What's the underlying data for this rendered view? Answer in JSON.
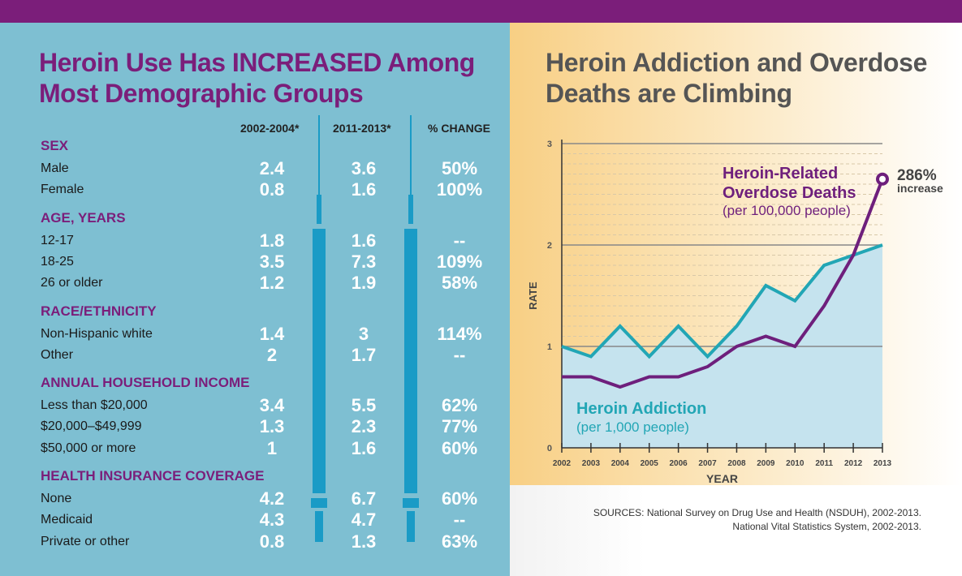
{
  "left_title": "Heroin Use Has INCREASED Among Most Demographic Groups",
  "columns": [
    "2002-2004*",
    "2011-2013*",
    "% CHANGE"
  ],
  "sections": [
    {
      "title": "SEX",
      "rows": [
        [
          "Male",
          "2.4",
          "3.6",
          "50%"
        ],
        [
          "Female",
          "0.8",
          "1.6",
          "100%"
        ]
      ]
    },
    {
      "title": "AGE, YEARS",
      "rows": [
        [
          "12-17",
          "1.8",
          "1.6",
          "--"
        ],
        [
          "18-25",
          "3.5",
          "7.3",
          "109%"
        ],
        [
          "26 or older",
          "1.2",
          "1.9",
          "58%"
        ]
      ]
    },
    {
      "title": "RACE/ETHNICITY",
      "rows": [
        [
          "Non-Hispanic white",
          "1.4",
          "3",
          "114%"
        ],
        [
          "Other",
          "2",
          "1.7",
          "--"
        ]
      ]
    },
    {
      "title": "ANNUAL HOUSEHOLD INCOME",
      "rows": [
        [
          "Less than $20,000",
          "3.4",
          "5.5",
          "62%"
        ],
        [
          "$20,000–$49,999",
          "1.3",
          "2.3",
          "77%"
        ],
        [
          "$50,000 or more",
          "1",
          "1.6",
          "60%"
        ]
      ]
    },
    {
      "title": "HEALTH INSURANCE COVERAGE",
      "rows": [
        [
          "None",
          "4.2",
          "6.7",
          "60%"
        ],
        [
          "Medicaid",
          "4.3",
          "4.7",
          "--"
        ],
        [
          "Private or other",
          "0.8",
          "1.3",
          "63%"
        ]
      ]
    }
  ],
  "chart_data": {
    "type": "line",
    "title": "Heroin Addiction and Overdose Deaths are Climbing",
    "xlabel": "YEAR",
    "ylabel": "RATE",
    "x": [
      2002,
      2003,
      2004,
      2005,
      2006,
      2007,
      2008,
      2009,
      2010,
      2011,
      2012,
      2013
    ],
    "yticks": [
      0,
      1,
      2,
      3
    ],
    "ylim": [
      0,
      3
    ],
    "grid": true,
    "series": [
      {
        "name": "Heroin Addiction",
        "unit": "(per 1,000 people)",
        "color": "#22a6b5",
        "values": [
          1.0,
          0.9,
          1.2,
          0.9,
          1.2,
          0.9,
          1.2,
          1.6,
          1.45,
          1.8,
          1.9,
          2.0
        ]
      },
      {
        "name": "Heroin-Related Overdose Deaths",
        "unit": "(per 100,000 people)",
        "color": "#6e1f7c",
        "values": [
          0.7,
          0.7,
          0.6,
          0.7,
          0.7,
          0.8,
          1.0,
          1.1,
          1.0,
          1.4,
          1.9,
          2.65
        ]
      }
    ],
    "annotation": {
      "value": "286%",
      "text": "increase"
    }
  },
  "sources": [
    "SOURCES: National Survey on Drug Use and Health (NSDUH), 2002-2013.",
    "National Vital Statistics System, 2002-2013."
  ]
}
